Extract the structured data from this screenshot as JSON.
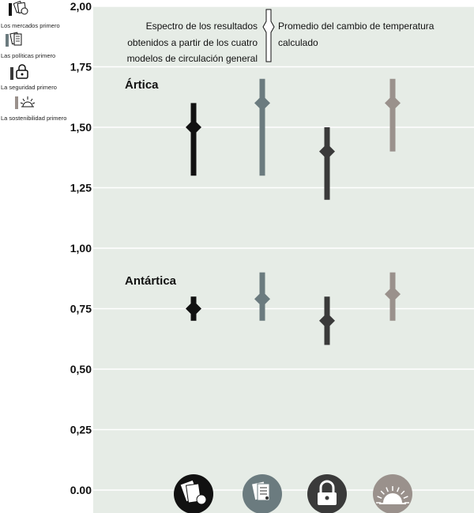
{
  "legend": {
    "items": [
      {
        "label": "Los mercados primero",
        "color": "#111111",
        "icon": "money-icon"
      },
      {
        "label": "Las políticas primero",
        "color": "#6b7b7f",
        "icon": "documents-icon"
      },
      {
        "label": "La seguridad primero",
        "color": "#3a3a3a",
        "icon": "padlock-icon"
      },
      {
        "label": "La sostenibilidad primero",
        "color": "#9a918c",
        "icon": "sunrise-icon"
      }
    ]
  },
  "key": {
    "range_text": [
      "Espectro de los resultados",
      "obtenidos  a partir de los cuatro",
      "modelos de circulación general"
    ],
    "mean_text": [
      "Promedio del cambio de temperatura",
      "calculado"
    ]
  },
  "chart_data": {
    "type": "range",
    "ylim": [
      0,
      2
    ],
    "yticks": [
      "0.00",
      "0,25",
      "0,50",
      "0,75",
      "1,00",
      "1,25",
      "1,50",
      "1,75",
      "2,00"
    ],
    "ytick_values": [
      0,
      0.25,
      0.5,
      0.75,
      1.0,
      1.25,
      1.5,
      1.75,
      2.0
    ],
    "grid": true,
    "groups": [
      {
        "label": "Ártica",
        "series": [
          {
            "name": "Los mercados primero",
            "min": 1.3,
            "max": 1.6,
            "mean": 1.5
          },
          {
            "name": "Las políticas primero",
            "min": 1.3,
            "max": 1.7,
            "mean": 1.6
          },
          {
            "name": "La seguridad primero",
            "min": 1.2,
            "max": 1.5,
            "mean": 1.4
          },
          {
            "name": "La sostenibilidad primero",
            "min": 1.4,
            "max": 1.7,
            "mean": 1.6
          }
        ]
      },
      {
        "label": "Antártica",
        "series": [
          {
            "name": "Los mercados primero",
            "min": 0.7,
            "max": 0.8,
            "mean": 0.75
          },
          {
            "name": "Las políticas primero",
            "min": 0.7,
            "max": 0.9,
            "mean": 0.79
          },
          {
            "name": "La seguridad primero",
            "min": 0.6,
            "max": 0.8,
            "mean": 0.7
          },
          {
            "name": "La sostenibilidad primero",
            "min": 0.7,
            "max": 0.9,
            "mean": 0.81
          }
        ]
      }
    ]
  }
}
